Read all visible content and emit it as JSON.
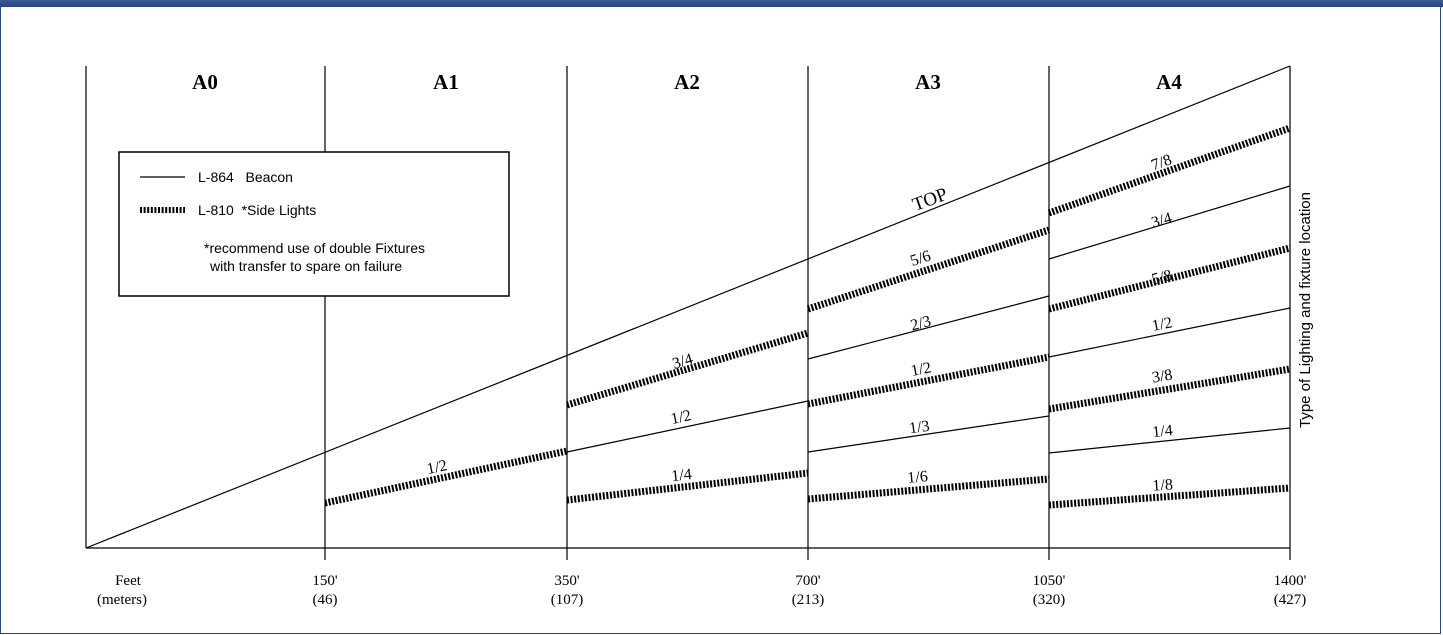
{
  "chart_data": {
    "type": "line",
    "zones": [
      "A0",
      "A1",
      "A2",
      "A3",
      "A4"
    ],
    "x_ticks": [
      {
        "feet": "150'",
        "meters": "(46)"
      },
      {
        "feet": "350'",
        "meters": "(107)"
      },
      {
        "feet": "700'",
        "meters": "(213)"
      },
      {
        "feet": "1050'",
        "meters": "(320)"
      },
      {
        "feet": "1400'",
        "meters": "(427)"
      }
    ],
    "x_axis_label": {
      "feet": "Feet",
      "meters": "(meters)"
    },
    "ylabel": "Type of Lighting and fixture location",
    "top_label": "TOP",
    "legend": {
      "beacon": "L-864   Beacon",
      "side": "L-810  *Side Lights",
      "note_line1": "*recommend use of double Fixtures",
      "note_line2": "with transfer to spare on failure"
    },
    "segments": [
      {
        "zone": "A1",
        "label": "1/2",
        "type": "side"
      },
      {
        "zone": "A2",
        "label": "3/4",
        "type": "side"
      },
      {
        "zone": "A2",
        "label": "1/2",
        "type": "beacon"
      },
      {
        "zone": "A2",
        "label": "1/4",
        "type": "side"
      },
      {
        "zone": "A3",
        "label": "5/6",
        "type": "side"
      },
      {
        "zone": "A3",
        "label": "2/3",
        "type": "beacon"
      },
      {
        "zone": "A3",
        "label": "1/2",
        "type": "side"
      },
      {
        "zone": "A3",
        "label": "1/3",
        "type": "beacon"
      },
      {
        "zone": "A3",
        "label": "1/6",
        "type": "side"
      },
      {
        "zone": "A4",
        "label": "7/8",
        "type": "side"
      },
      {
        "zone": "A4",
        "label": "3/4",
        "type": "beacon"
      },
      {
        "zone": "A4",
        "label": "5/8",
        "type": "side"
      },
      {
        "zone": "A4",
        "label": "1/2",
        "type": "beacon"
      },
      {
        "zone": "A4",
        "label": "3/8",
        "type": "side"
      },
      {
        "zone": "A4",
        "label": "1/4",
        "type": "beacon"
      },
      {
        "zone": "A4",
        "label": "1/8",
        "type": "side"
      }
    ],
    "line_colors": {
      "line": "#000000"
    }
  }
}
